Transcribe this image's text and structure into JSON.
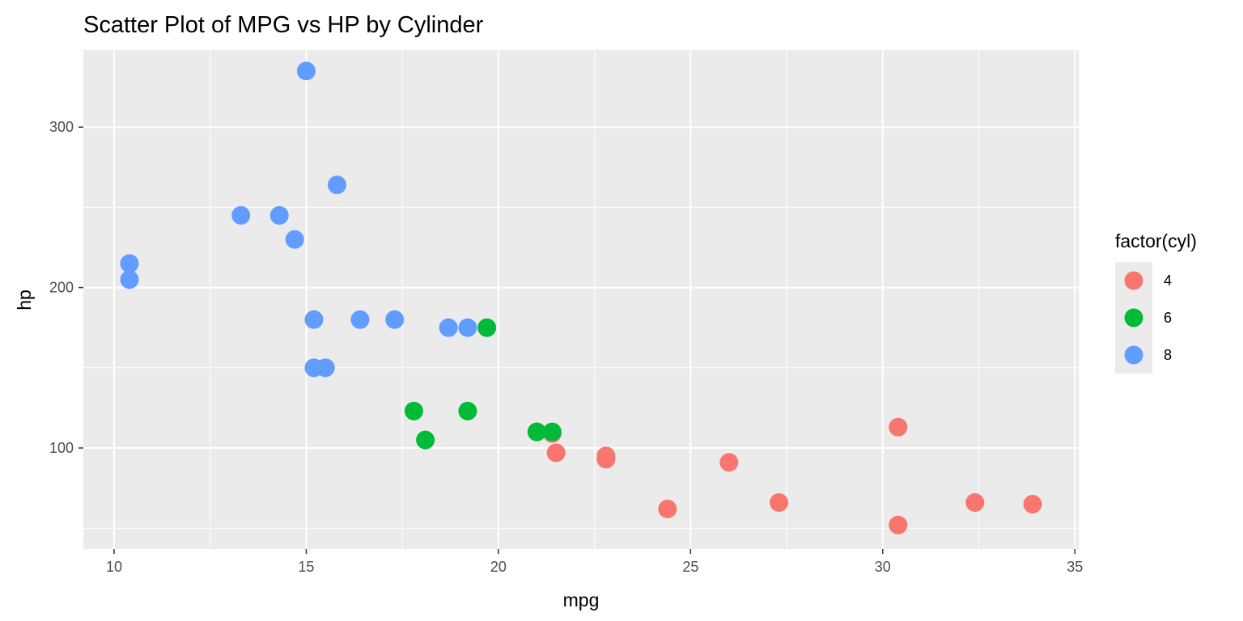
{
  "chart_data": {
    "type": "scatter",
    "title": "Scatter Plot of MPG vs HP by Cylinder",
    "xlabel": "mpg",
    "ylabel": "hp",
    "xlim": [
      9.2,
      35.1
    ],
    "ylim": [
      37,
      348
    ],
    "x_ticks": [
      10,
      15,
      20,
      25,
      30,
      35
    ],
    "y_ticks": [
      100,
      200,
      300
    ],
    "x_minor_ticks": [
      12.5,
      17.5,
      22.5,
      27.5,
      32.5
    ],
    "y_minor_ticks": [
      50,
      150,
      250
    ],
    "grid": true,
    "background": "#ebebeb",
    "legend": {
      "title": "factor(cyl)",
      "position": "right",
      "entries": [
        {
          "label": "4",
          "color": "#F8766D"
        },
        {
          "label": "6",
          "color": "#00BA38"
        },
        {
          "label": "8",
          "color": "#619CFF"
        }
      ]
    },
    "series": [
      {
        "name": "4",
        "color": "#F8766D",
        "points": [
          [
            22.8,
            93
          ],
          [
            24.4,
            62
          ],
          [
            22.8,
            95
          ],
          [
            32.4,
            66
          ],
          [
            30.4,
            52
          ],
          [
            33.9,
            65
          ],
          [
            21.5,
            97
          ],
          [
            27.3,
            66
          ],
          [
            26.0,
            91
          ],
          [
            30.4,
            113
          ],
          [
            21.4,
            109
          ]
        ]
      },
      {
        "name": "6",
        "color": "#00BA38",
        "points": [
          [
            21.0,
            110
          ],
          [
            21.0,
            110
          ],
          [
            21.4,
            110
          ],
          [
            18.1,
            105
          ],
          [
            19.2,
            123
          ],
          [
            17.8,
            123
          ],
          [
            19.7,
            175
          ]
        ]
      },
      {
        "name": "8",
        "color": "#619CFF",
        "points": [
          [
            18.7,
            175
          ],
          [
            14.3,
            245
          ],
          [
            16.4,
            180
          ],
          [
            17.3,
            180
          ],
          [
            15.2,
            180
          ],
          [
            10.4,
            205
          ],
          [
            10.4,
            215
          ],
          [
            14.7,
            230
          ],
          [
            15.5,
            150
          ],
          [
            15.2,
            150
          ],
          [
            13.3,
            245
          ],
          [
            19.2,
            175
          ],
          [
            15.8,
            264
          ],
          [
            15.0,
            335
          ]
        ]
      }
    ]
  }
}
